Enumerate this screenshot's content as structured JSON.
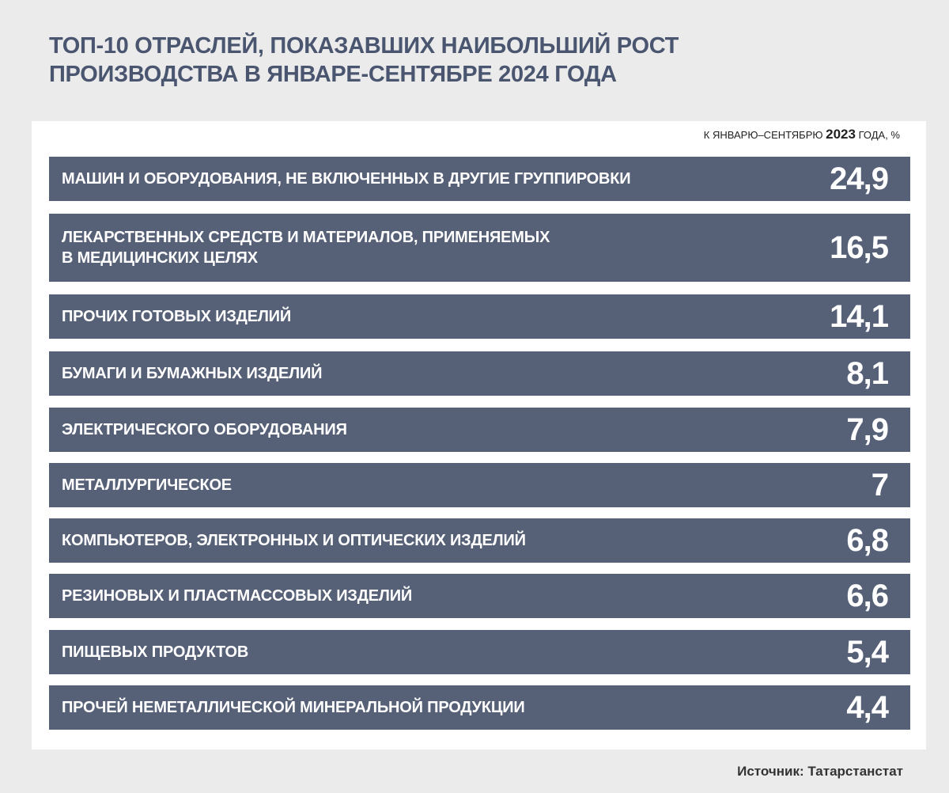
{
  "title_line1": "ТОП-10 ОТРАСЛЕЙ, ПОКАЗАВШИХ НАИБОЛЬШИЙ РОСТ",
  "title_line2": "ПРОИЗВОДСТВА В ЯНВАРЕ-СЕНТЯБРЕ 2024 ГОДА",
  "unit_prefix": "К ЯНВАРЮ–СЕНТЯБРЮ",
  "unit_year": "2023",
  "unit_suffix": "ГОДА, %",
  "source": "Источник: Татарстанстат",
  "colors": {
    "bar": "#566077",
    "title": "#4a5570",
    "background": "#ebebeb"
  },
  "chart_data": {
    "type": "table",
    "title": "ТОП-10 ОТРАСЛЕЙ, ПОКАЗАВШИХ НАИБОЛЬШИЙ РОСТ ПРОИЗВОДСТВА В ЯНВАРЕ-СЕНТЯБРЕ 2024 ГОДА",
    "unit": "к январю–сентябрю 2023 года, %",
    "rows": [
      {
        "label": "МАШИН И ОБОРУДОВАНИЯ, НЕ ВКЛЮЧЕННЫХ В ДРУГИЕ ГРУППИРОВКИ",
        "value": "24,9"
      },
      {
        "label": "ЛЕКАРСТВЕННЫХ СРЕДСТВ И МАТЕРИАЛОВ, ПРИМЕНЯЕМЫХ\nВ МЕДИЦИНСКИХ ЦЕЛЯХ",
        "value": "16,5"
      },
      {
        "label": "ПРОЧИХ ГОТОВЫХ ИЗДЕЛИЙ",
        "value": "14,1"
      },
      {
        "label": "БУМАГИ И БУМАЖНЫХ ИЗДЕЛИЙ",
        "value": "8,1"
      },
      {
        "label": "ЭЛЕКТРИЧЕСКОГО ОБОРУДОВАНИЯ",
        "value": "7,9"
      },
      {
        "label": "МЕТАЛЛУРГИЧЕСКОЕ",
        "value": "7"
      },
      {
        "label": "КОМПЬЮТЕРОВ, ЭЛЕКТРОННЫХ И ОПТИЧЕСКИХ ИЗДЕЛИЙ",
        "value": "6,8"
      },
      {
        "label": "РЕЗИНОВЫХ И ПЛАСТМАССОВЫХ ИЗДЕЛИЙ",
        "value": "6,6"
      },
      {
        "label": "ПИЩЕВЫХ ПРОДУКТОВ",
        "value": "5,4"
      },
      {
        "label": "ПРОЧЕЙ НЕМЕТАЛЛИЧЕСКОЙ МИНЕРАЛЬНОЙ ПРОДУКЦИИ",
        "value": "4,4"
      }
    ]
  }
}
